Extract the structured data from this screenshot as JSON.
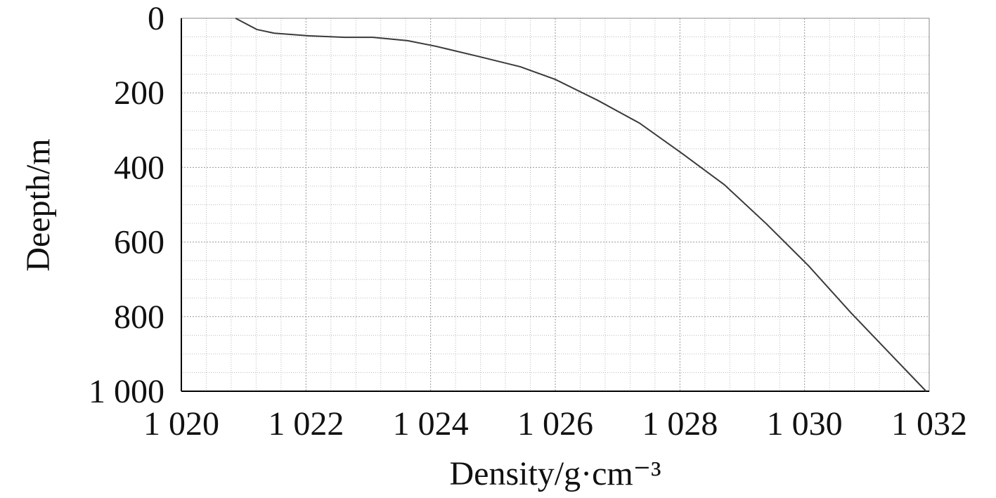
{
  "chart_data": {
    "type": "line",
    "x_label": "Density/g·cm⁻³",
    "y_label": "Deepth/m",
    "x": [
      1020.87,
      1021.21,
      1021.49,
      1022.05,
      1022.62,
      1023.07,
      1023.63,
      1024.08,
      1024.76,
      1025.44,
      1026.0,
      1026.68,
      1027.35,
      1028.03,
      1028.71,
      1029.38,
      1030.06,
      1030.74,
      1031.41,
      1031.95
    ],
    "values": [
      0,
      30,
      40,
      47,
      51,
      51,
      60,
      75,
      102,
      130,
      164,
      220,
      281,
      362,
      446,
      550,
      663,
      789,
      906,
      1000
    ],
    "color": "#3a3a3a",
    "xlim": [
      1020,
      1032
    ],
    "xticks": [
      {
        "value": 1020,
        "label": "1 020"
      },
      {
        "value": 1022,
        "label": "1 022"
      },
      {
        "value": 1024,
        "label": "1 024"
      },
      {
        "value": 1026,
        "label": "1 026"
      },
      {
        "value": 1028,
        "label": "1 028"
      },
      {
        "value": 1030,
        "label": "1 030"
      },
      {
        "value": 1032,
        "label": "1 032"
      }
    ],
    "ylim": [
      0,
      1000
    ],
    "y_inverted": true,
    "yticks": [
      0,
      200,
      400,
      600,
      800,
      {
        "value": 1000,
        "label": "1 000"
      }
    ],
    "grid": true
  }
}
